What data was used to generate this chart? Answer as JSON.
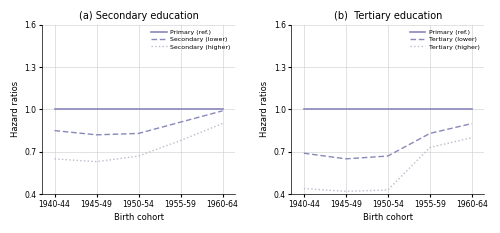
{
  "x_labels": [
    "1940-44",
    "1945-49",
    "1950-54",
    "1955-59",
    "1960-64"
  ],
  "x_values": [
    0,
    1,
    2,
    3,
    4
  ],
  "panel_a": {
    "title": "(a) Secondary education",
    "primary": [
      1.0,
      1.0,
      1.0,
      1.0,
      1.0
    ],
    "secondary_lower": [
      0.85,
      0.82,
      0.83,
      0.91,
      0.99
    ],
    "secondary_higher": [
      0.65,
      0.63,
      0.67,
      0.78,
      0.9
    ],
    "legend_labels": [
      "Primary (ref.)",
      "Secondary (lower)",
      "Secondary (higher)"
    ]
  },
  "panel_b": {
    "title": "(b)  Tertiary education",
    "primary": [
      1.0,
      1.0,
      1.0,
      1.0,
      1.0
    ],
    "tertiary_lower": [
      0.69,
      0.65,
      0.67,
      0.83,
      0.9
    ],
    "tertiary_higher": [
      0.44,
      0.42,
      0.43,
      0.73,
      0.8
    ],
    "legend_labels": [
      "Primary (ref.)",
      "Tertiary (lower)",
      "Tertiary (higher)"
    ]
  },
  "ylim": [
    0.4,
    1.6
  ],
  "yticks": [
    0.4,
    0.7,
    1.0,
    1.3,
    1.6
  ],
  "primary_color": "#8888bb",
  "lower_color": "#8888bb",
  "higher_color": "#bbbbcc",
  "grid_color": "#cccccc",
  "ylabel": "Hazard ratios",
  "xlabel": "Birth cohort"
}
